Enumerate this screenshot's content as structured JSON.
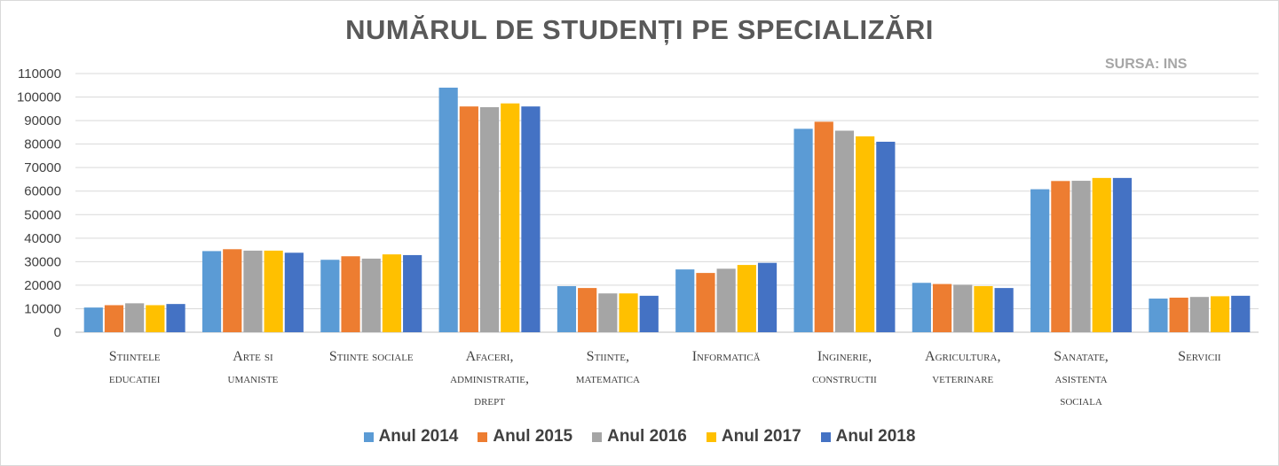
{
  "chart_data": {
    "type": "bar",
    "title": "NUMĂRUL DE STUDENȚI PE SPECIALIZĂRI",
    "source_label": "SURSA: INS",
    "categories": [
      [
        "Stiintele",
        "educatiei"
      ],
      [
        "Arte si",
        "umaniste"
      ],
      [
        "Stiinte sociale"
      ],
      [
        "Afaceri,",
        "administratie,",
        "drept"
      ],
      [
        "Stiinte,",
        "matematica"
      ],
      [
        "Informatică"
      ],
      [
        "Inginerie,",
        "constructii"
      ],
      [
        "Agricultura,",
        "veterinare"
      ],
      [
        "Sanatate,",
        "asistenta",
        "sociala"
      ],
      [
        "Servicii"
      ]
    ],
    "ylim": [
      0,
      110000
    ],
    "yticks": [
      "0",
      "10000",
      "20000",
      "30000",
      "40000",
      "50000",
      "60000",
      "70000",
      "80000",
      "90000",
      "100000",
      "110000"
    ],
    "grid": true,
    "legend_position": "bottom",
    "series": [
      {
        "name": "Anul 2014",
        "color": "#5b9bd5",
        "values": [
          10500,
          34500,
          30800,
          104000,
          19600,
          26700,
          86500,
          21000,
          60800,
          14300
        ]
      },
      {
        "name": "Anul 2015",
        "color": "#ed7d31",
        "values": [
          11500,
          35300,
          32300,
          96000,
          18800,
          25200,
          89500,
          20500,
          64300,
          14700
        ]
      },
      {
        "name": "Anul 2016",
        "color": "#a5a5a5",
        "values": [
          12300,
          34700,
          31300,
          95700,
          16500,
          27000,
          85700,
          20200,
          64400,
          15000
        ]
      },
      {
        "name": "Anul 2017",
        "color": "#ffc000",
        "values": [
          11500,
          34700,
          33100,
          97300,
          16500,
          28600,
          83300,
          19600,
          65600,
          15300
        ]
      },
      {
        "name": "Anul 2018",
        "color": "#4472c4",
        "values": [
          12000,
          33800,
          32800,
          96000,
          15500,
          29500,
          81000,
          18800,
          65600,
          15500
        ]
      }
    ]
  }
}
